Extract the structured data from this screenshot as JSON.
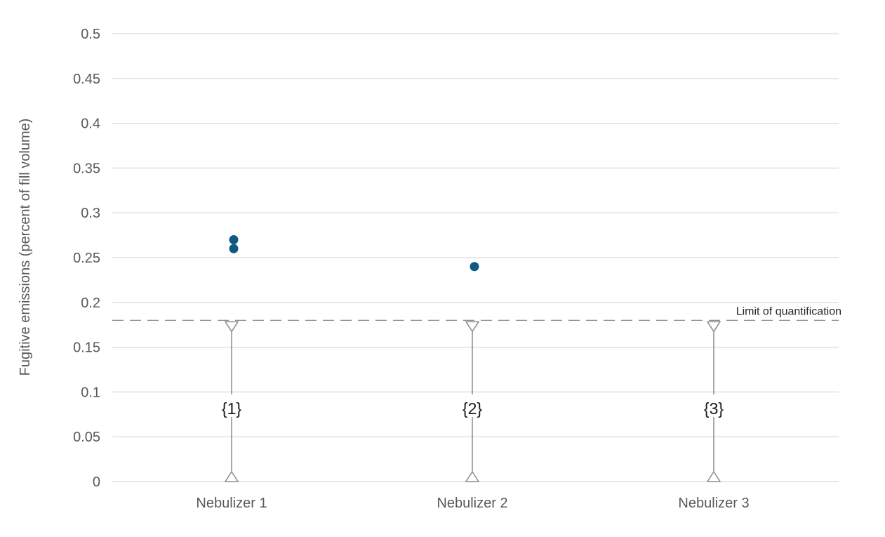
{
  "chart_data": {
    "type": "scatter",
    "ylabel": "Fugitive emissions (percent of fill volume)",
    "ylim": [
      0,
      0.5
    ],
    "yticks": [
      "0",
      "0.05",
      "0.1",
      "0.15",
      "0.2",
      "0.25",
      "0.3",
      "0.35",
      "0.4",
      "0.45",
      "0.5"
    ],
    "ytick_values": [
      0,
      0.05,
      0.1,
      0.15,
      0.2,
      0.25,
      0.3,
      0.35,
      0.4,
      0.45,
      0.5
    ],
    "grid": true,
    "categories": [
      "Nebulizer 1",
      "Nebulizer 2",
      "Nebulizer 3"
    ],
    "points": [
      {
        "category": "Nebulizer 1",
        "y": 0.27
      },
      {
        "category": "Nebulizer 1",
        "y": 0.26
      },
      {
        "category": "Nebulizer 2",
        "y": 0.24
      }
    ],
    "below_loq_ranges": [
      {
        "category": "Nebulizer 1",
        "low": 0,
        "high": 0.18,
        "note": "{1}"
      },
      {
        "category": "Nebulizer 2",
        "low": 0,
        "high": 0.18,
        "note": "{2}"
      },
      {
        "category": "Nebulizer 3",
        "low": 0,
        "high": 0.18,
        "note": "{3}"
      }
    ],
    "reference_line": {
      "y": 0.18,
      "label": "Limit of quantification",
      "style": "dashed"
    },
    "colors": {
      "point": "#0e5a84",
      "grid": "#d9d9d9",
      "range": "#8c8c8c",
      "reference": "#7f7f7f"
    }
  }
}
